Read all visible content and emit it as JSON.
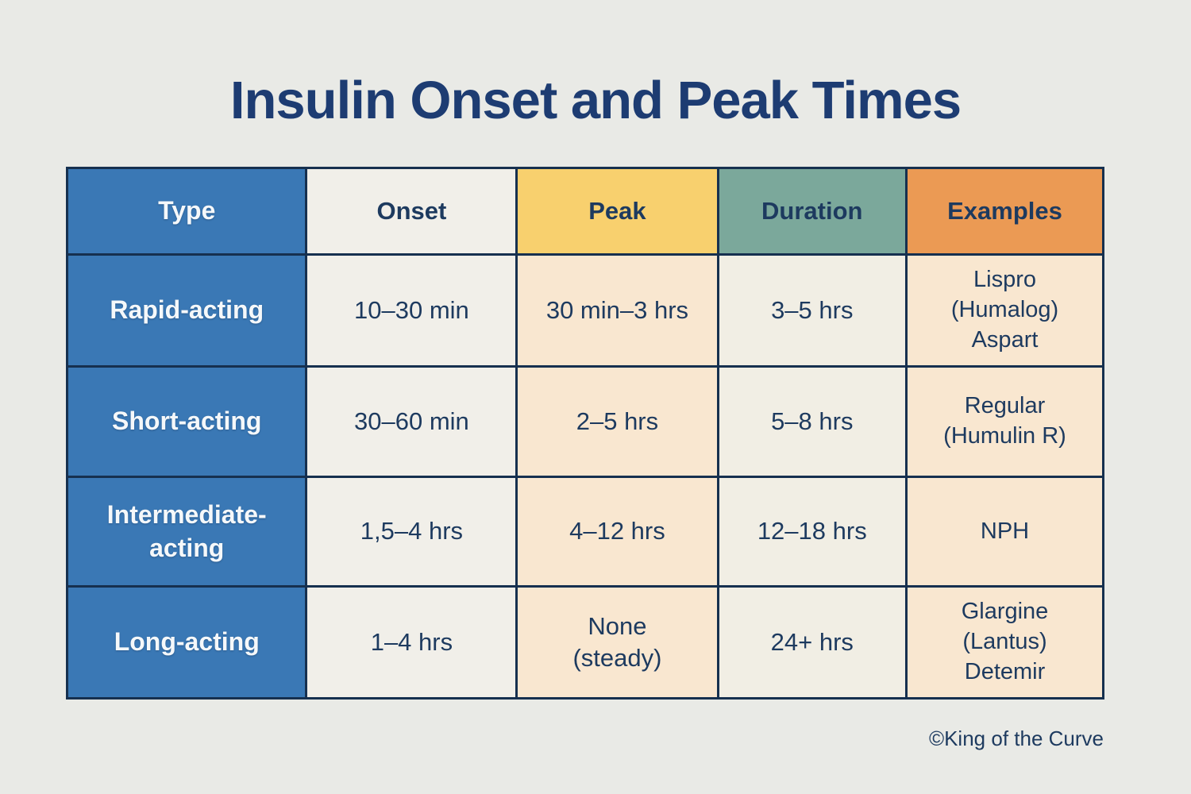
{
  "title": "Insulin Onset and Peak Times",
  "credit": "©King of the Curve",
  "colors": {
    "page_bg": "#e9eae6",
    "border": "#16304f",
    "title_text": "#1d3c72",
    "cell_text": "#1d3a5f",
    "type_col_bg": "#3a78b5",
    "type_col_text": "#f5f8fa",
    "header_onset_bg": "#f1efe9",
    "header_peak_bg": "#f8d06e",
    "header_duration_bg": "#7ba89b",
    "header_examples_bg": "#eb9a54",
    "cell_onset_bg": "#f1efe9",
    "cell_peak_bg": "#f9e7d0",
    "cell_duration_bg": "#f1eee4",
    "cell_examples_bg": "#f9e7d0"
  },
  "table": {
    "headers": [
      {
        "label": "Type"
      },
      {
        "label": "Onset"
      },
      {
        "label": "Peak"
      },
      {
        "label": "Duration"
      },
      {
        "label": "Examples"
      }
    ],
    "rows": [
      {
        "type": "Rapid-acting",
        "onset": "10–30 min",
        "peak": "30 min–3 hrs",
        "duration": "3–5 hrs",
        "examples": [
          "Lispro",
          "(Humalog)",
          "Aspart"
        ]
      },
      {
        "type": "Short-acting",
        "onset": "30–60 min",
        "peak": "2–5 hrs",
        "duration": "5–8 hrs",
        "examples": [
          "Regular",
          "(Humulin R)"
        ]
      },
      {
        "type": "Intermediate-acting",
        "onset": "1,5–4 hrs",
        "peak": "4–12 hrs",
        "duration": "12–18 hrs",
        "examples": [
          "NPH"
        ]
      },
      {
        "type": "Long-acting",
        "onset": "1–4 hrs",
        "peak": [
          "None",
          "(steady)"
        ],
        "duration": "24+ hrs",
        "examples": [
          "Glargine",
          "(Lantus)",
          "Detemir"
        ]
      }
    ]
  },
  "chart_data": {
    "type": "table",
    "title": "Insulin Onset and Peak Times",
    "columns": [
      "Type",
      "Onset",
      "Peak",
      "Duration",
      "Examples"
    ],
    "rows": [
      [
        "Rapid-acting",
        "10–30 min",
        "30 min–3 hrs",
        "3–5 hrs",
        "Lispro (Humalog) Aspart"
      ],
      [
        "Short-acting",
        "30–60 min",
        "2–5 hrs",
        "5–8 hrs",
        "Regular (Humulin R)"
      ],
      [
        "Intermediate-acting",
        "1,5–4 hrs",
        "4–12 hrs",
        "12–18 hrs",
        "NPH"
      ],
      [
        "Long-acting",
        "1–4 hrs",
        "None (steady)",
        "24+ hrs",
        "Glargine (Lantus) Detemir"
      ]
    ]
  }
}
